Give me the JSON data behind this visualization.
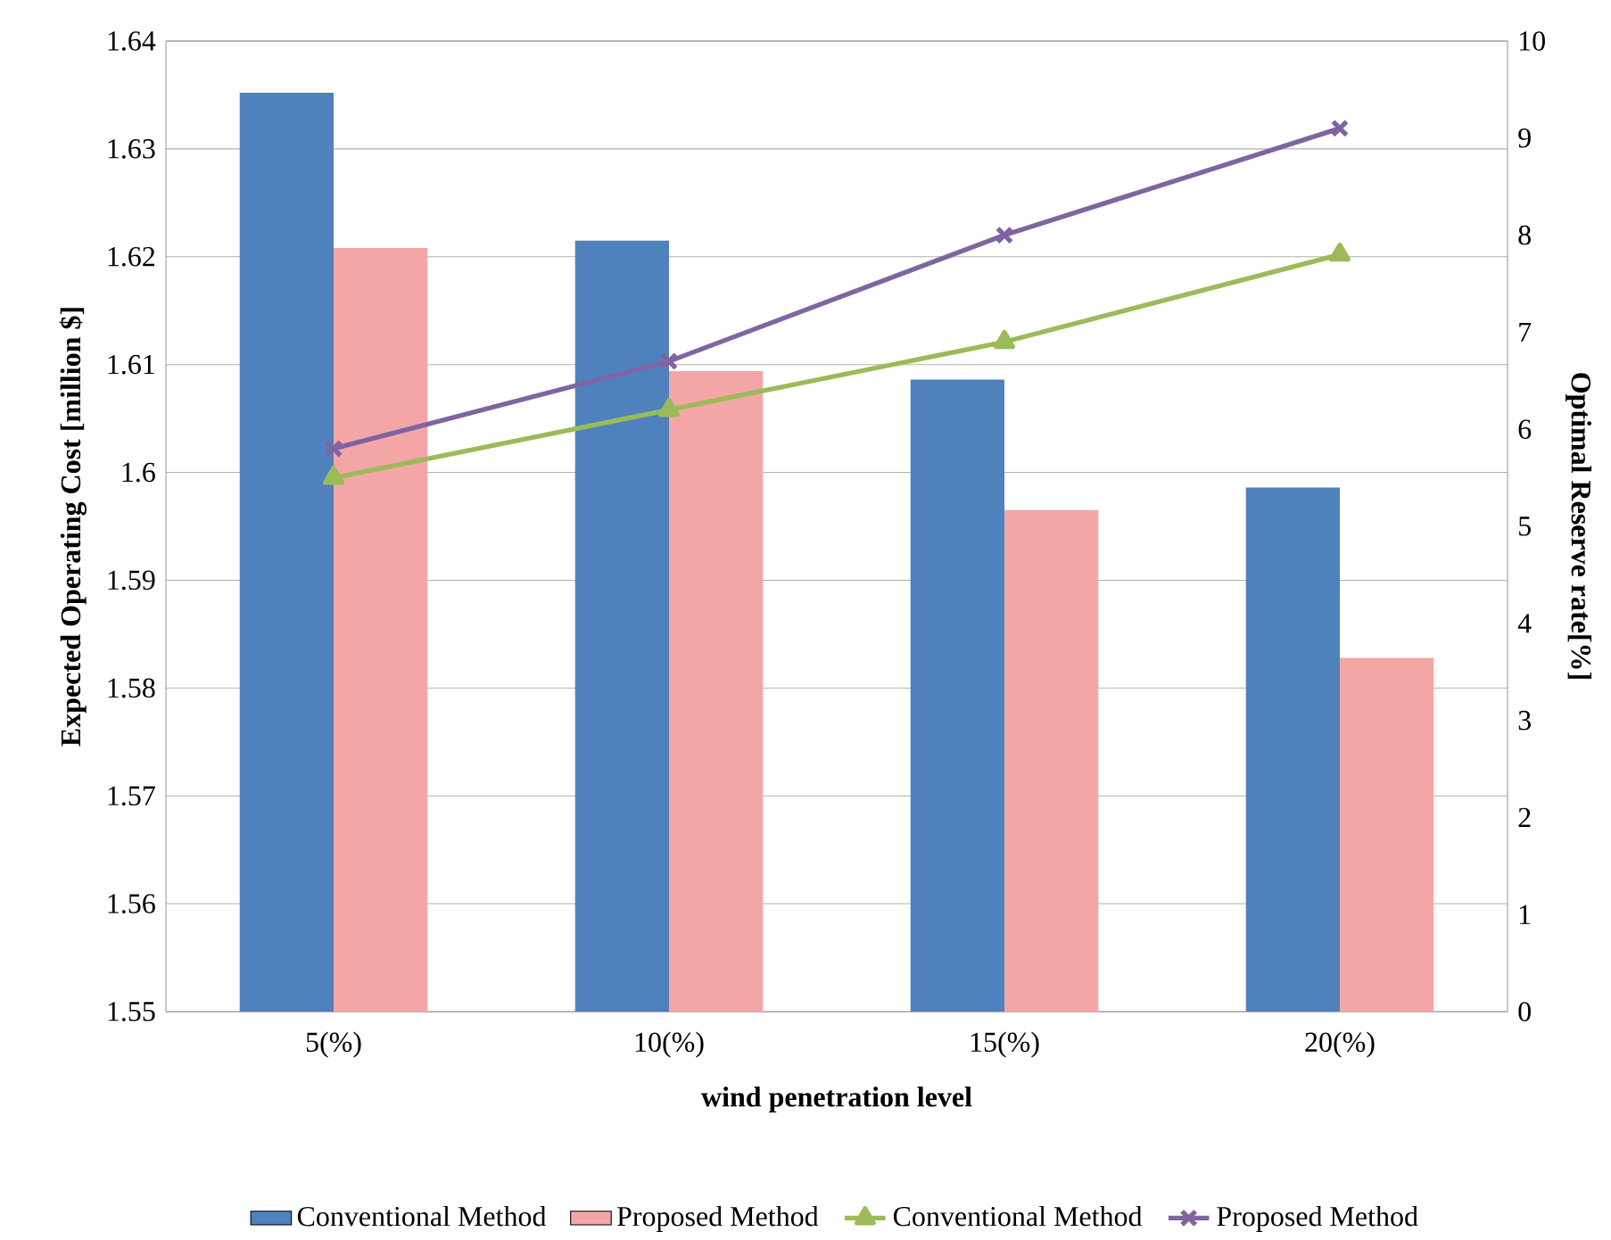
{
  "chart_data": {
    "type": "bar",
    "xlabel": "wind penetration level",
    "ylabel": "Expected Operating Cost [million $]",
    "y2label": "Optimal Reserve rate[%]",
    "categories": [
      "5(%)",
      "10(%)",
      "15(%)",
      "20(%)"
    ],
    "series": [
      {
        "name": "Conventional Method",
        "color": "#4f81bd",
        "values": [
          1.6352,
          1.6215,
          1.6086,
          1.5986
        ]
      },
      {
        "name": "Proposed Method",
        "color": "#f4a6a6",
        "values": [
          1.6208,
          1.6094,
          1.5965,
          1.5828
        ]
      },
      {
        "name": "Conventional Method",
        "type": "line",
        "axis": "y2",
        "color": "#9bbb59",
        "marker": "triangle",
        "values": [
          5.5,
          6.2,
          6.9,
          7.8
        ]
      },
      {
        "name": "Proposed Method",
        "type": "line",
        "axis": "y2",
        "color": "#8064a2",
        "marker": "cross",
        "values": [
          5.8,
          6.7,
          8.0,
          9.1
        ]
      }
    ],
    "ylim": [
      1.55,
      1.64
    ],
    "yticks": [
      1.55,
      1.56,
      1.57,
      1.58,
      1.59,
      1.6,
      1.61,
      1.62,
      1.63,
      1.64
    ],
    "y2lim": [
      0,
      10
    ],
    "y2ticks": [
      0,
      1,
      2,
      3,
      4,
      5,
      6,
      7,
      8,
      9,
      10
    ],
    "grid": "y",
    "legend": "bottom"
  }
}
